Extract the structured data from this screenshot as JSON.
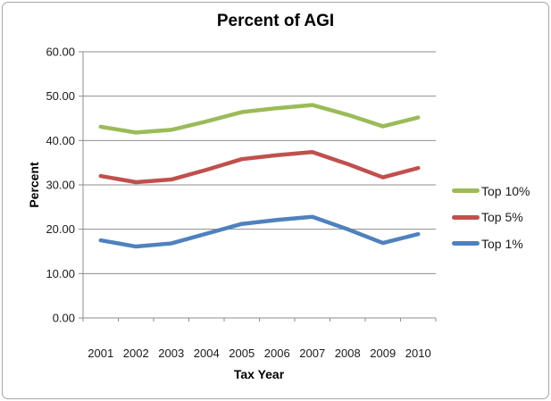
{
  "chart_data": {
    "type": "line",
    "title": "Percent of AGI",
    "xlabel": "Tax Year",
    "ylabel": "Percent",
    "categories": [
      "2001",
      "2002",
      "2003",
      "2004",
      "2005",
      "2006",
      "2007",
      "2008",
      "2009",
      "2010"
    ],
    "series": [
      {
        "name": "Top 10%",
        "color": "#9BBB59",
        "values": [
          43.1,
          41.8,
          42.4,
          44.3,
          46.4,
          47.3,
          48.0,
          45.8,
          43.2,
          45.2
        ]
      },
      {
        "name": "Top 5%",
        "color": "#C0504D",
        "values": [
          32.0,
          30.6,
          31.2,
          33.4,
          35.8,
          36.7,
          37.4,
          34.7,
          31.7,
          33.8
        ]
      },
      {
        "name": "Top 1%",
        "color": "#4F81BD",
        "values": [
          17.5,
          16.1,
          16.8,
          19.0,
          21.2,
          22.1,
          22.8,
          20.0,
          16.9,
          18.9
        ]
      }
    ],
    "ylim": [
      0,
      60
    ],
    "y_tick_step": 10,
    "y_tick_labels": [
      "0.00",
      "10.00",
      "20.00",
      "30.00",
      "40.00",
      "50.00",
      "60.00"
    ],
    "grid": true,
    "legend_position": "right"
  },
  "colors": {
    "background": "#FFFFFF",
    "chart_border": "#A6A6A6",
    "gridline": "#8D8D8D",
    "axis": "#8D8D8D",
    "tick_text": "#1A1A1A"
  }
}
